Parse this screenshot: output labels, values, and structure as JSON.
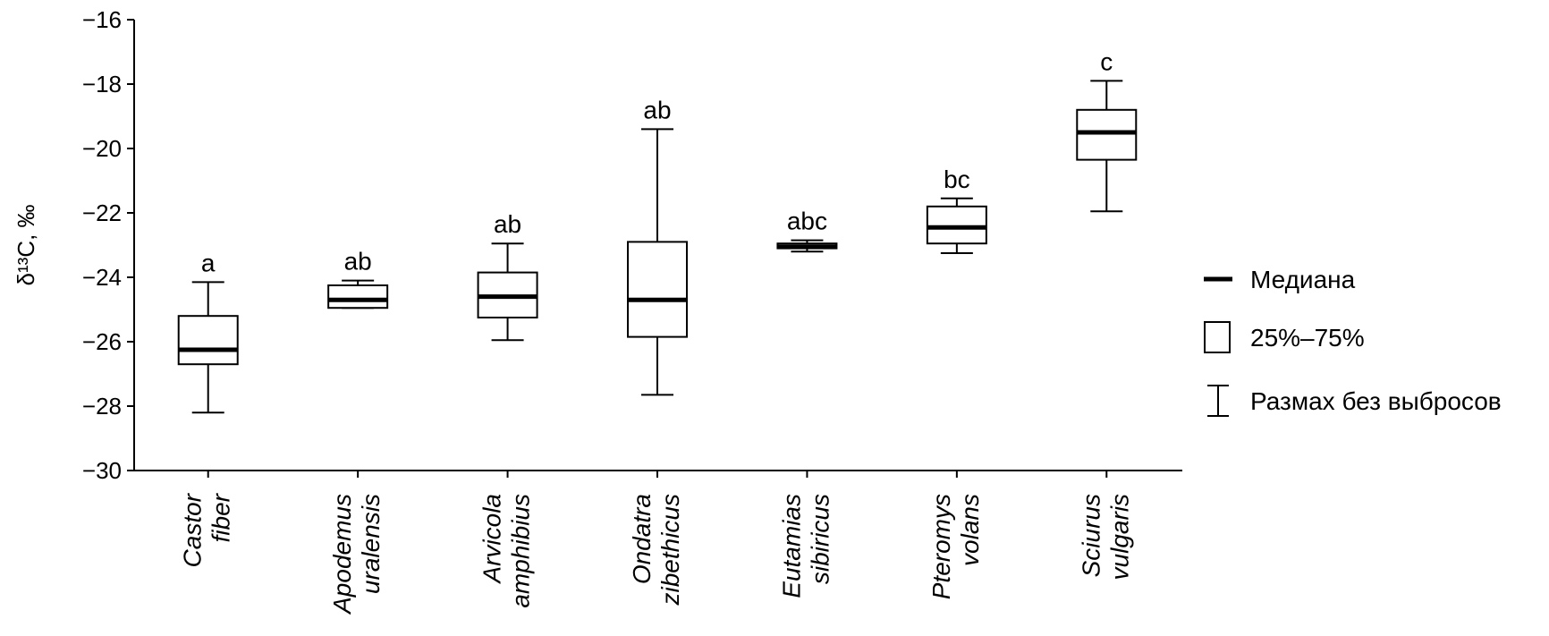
{
  "chart_data": {
    "type": "boxplot",
    "title": "",
    "xlabel": "",
    "ylabel": "δ¹³C, ‰",
    "ylim": [
      -30,
      -16
    ],
    "yticks": [
      -16,
      -18,
      -20,
      -22,
      -24,
      -26,
      -28,
      -30
    ],
    "ytick_labels": [
      "−16",
      "−18",
      "−20",
      "−22",
      "−24",
      "−26",
      "−28",
      "−30"
    ],
    "grid": false,
    "legend_position": "right",
    "categories": [
      {
        "line1": "Castor",
        "line2": "fiber",
        "min": -28.2,
        "q1": -26.7,
        "median": -26.25,
        "q3": -25.2,
        "max": -24.15,
        "group": "a"
      },
      {
        "line1": "Apodemus",
        "line2": "uralensis",
        "min": -24.95,
        "q1": -24.95,
        "median": -24.7,
        "q3": -24.25,
        "max": -24.1,
        "group": "ab"
      },
      {
        "line1": "Arvicola",
        "line2": "amphibius",
        "min": -25.95,
        "q1": -25.25,
        "median": -24.6,
        "q3": -23.85,
        "max": -22.95,
        "group": "ab"
      },
      {
        "line1": "Ondatra",
        "line2": "zibethicus",
        "min": -27.65,
        "q1": -25.85,
        "median": -24.7,
        "q3": -22.9,
        "max": -19.4,
        "group": "ab"
      },
      {
        "line1": "Eutamias",
        "line2": "sibiricus",
        "min": -23.2,
        "q1": -23.1,
        "median": -23.05,
        "q3": -22.95,
        "max": -22.85,
        "group": "abc"
      },
      {
        "line1": "Pteromys",
        "line2": "volans",
        "min": -23.25,
        "q1": -22.95,
        "median": -22.45,
        "q3": -21.8,
        "max": -21.55,
        "group": "bc"
      },
      {
        "line1": "Sciurus",
        "line2": "vulgaris",
        "min": -21.95,
        "q1": -20.35,
        "median": -19.5,
        "q3": -18.8,
        "max": -17.9,
        "group": "c"
      }
    ],
    "legend": [
      {
        "symbol": "median-line",
        "label": "Медиана"
      },
      {
        "symbol": "box",
        "label": "25%–75%"
      },
      {
        "symbol": "whisker",
        "label": "Размах без выбросов"
      }
    ]
  }
}
